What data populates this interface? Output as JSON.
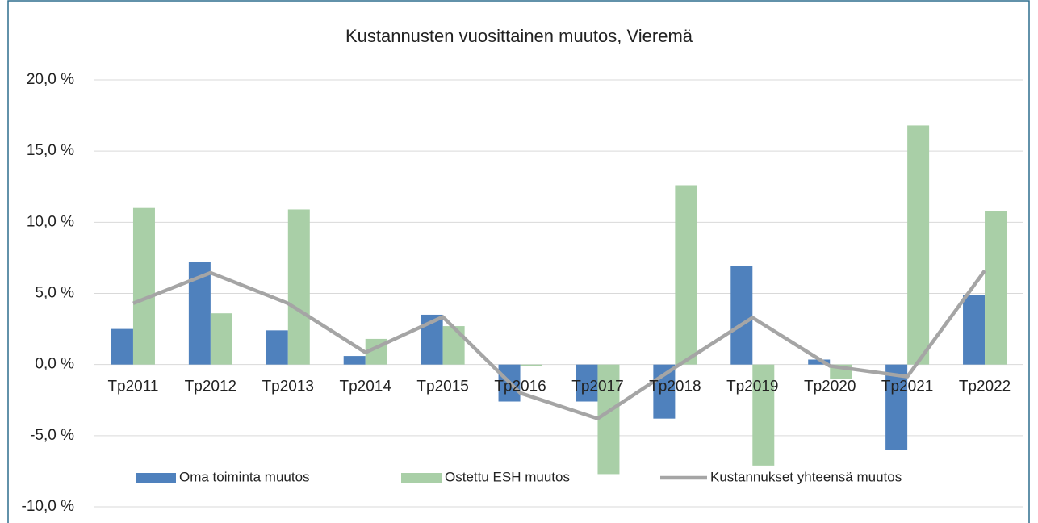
{
  "chart_data": {
    "type": "bar",
    "title": "Kustannusten vuosittainen muutos, Vieremä",
    "categories": [
      "Tp2011",
      "Tp2012",
      "Tp2013",
      "Tp2014",
      "Tp2015",
      "Tp2016",
      "Tp2017",
      "Tp2018",
      "Tp2019",
      "Tp2020",
      "Tp2021",
      "Tp2022"
    ],
    "series": [
      {
        "name": "Oma toiminta muutos",
        "color": "#4f81bd",
        "kind": "bar",
        "values": [
          2.5,
          7.2,
          2.4,
          0.6,
          3.5,
          -2.6,
          -2.6,
          -3.8,
          6.9,
          0.35,
          -6.0,
          4.9
        ]
      },
      {
        "name": "Ostettu ESH muutos",
        "color": "#a9cfa7",
        "kind": "bar",
        "values": [
          11.0,
          3.6,
          10.9,
          1.8,
          2.7,
          -0.1,
          -7.7,
          12.6,
          -7.1,
          -1.0,
          16.8,
          10.8
        ]
      },
      {
        "name": "Kustannukset yhteensä muutos",
        "color": "#a5a5a5",
        "kind": "line",
        "values": [
          4.3,
          6.45,
          4.3,
          0.85,
          3.35,
          -2.0,
          -3.8,
          -0.2,
          3.3,
          -0.1,
          -0.85,
          6.6
        ]
      }
    ],
    "ylim": [
      -10,
      20
    ],
    "yticks": [
      {
        "value": -10,
        "label": "-10,0 %"
      },
      {
        "value": -5,
        "label": "-5,0 %"
      },
      {
        "value": 0,
        "label": "0,0 %"
      },
      {
        "value": 5,
        "label": "5,0 %"
      },
      {
        "value": 10,
        "label": "10,0 %"
      },
      {
        "value": 15,
        "label": "15,0 %"
      },
      {
        "value": 20,
        "label": "20,0 %"
      }
    ],
    "grid": true,
    "legend": "bottom"
  }
}
